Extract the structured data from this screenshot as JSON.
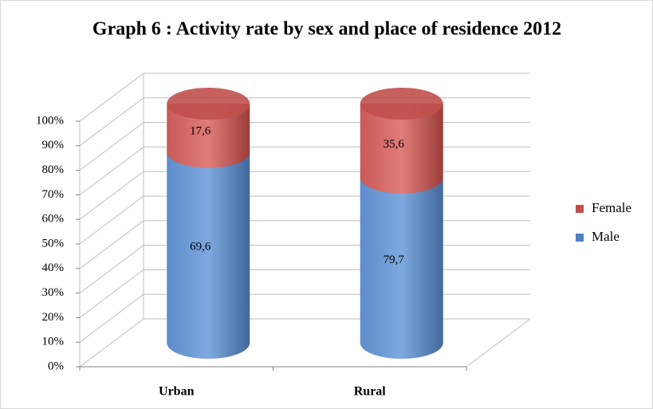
{
  "chart_data": {
    "type": "bar3d_cylinder",
    "stacking": "percent",
    "title": "Graph 6 : Activity rate by sex and place of residence 2012",
    "categories": [
      "Urban",
      "Rural"
    ],
    "series": [
      {
        "name": "Male",
        "color": "#4f81bd",
        "values": [
          69.6,
          79.7
        ],
        "value_labels": [
          "69,6",
          "79,7"
        ]
      },
      {
        "name": "Female",
        "color": "#c0504d",
        "values": [
          17.6,
          35.6
        ],
        "value_labels": [
          "17,6",
          "35,6"
        ]
      }
    ],
    "ylim": [
      0,
      100
    ],
    "yticks": [
      {
        "value": 0,
        "label": "0%"
      },
      {
        "value": 10,
        "label": "10%"
      },
      {
        "value": 20,
        "label": "20%"
      },
      {
        "value": 30,
        "label": "30%"
      },
      {
        "value": 40,
        "label": "40%"
      },
      {
        "value": 50,
        "label": "50%"
      },
      {
        "value": 60,
        "label": "60%"
      },
      {
        "value": 70,
        "label": "70%"
      },
      {
        "value": 80,
        "label": "80%"
      },
      {
        "value": 90,
        "label": "90%"
      },
      {
        "value": 100,
        "label": "100%"
      }
    ],
    "grid": true,
    "legend": "right"
  }
}
